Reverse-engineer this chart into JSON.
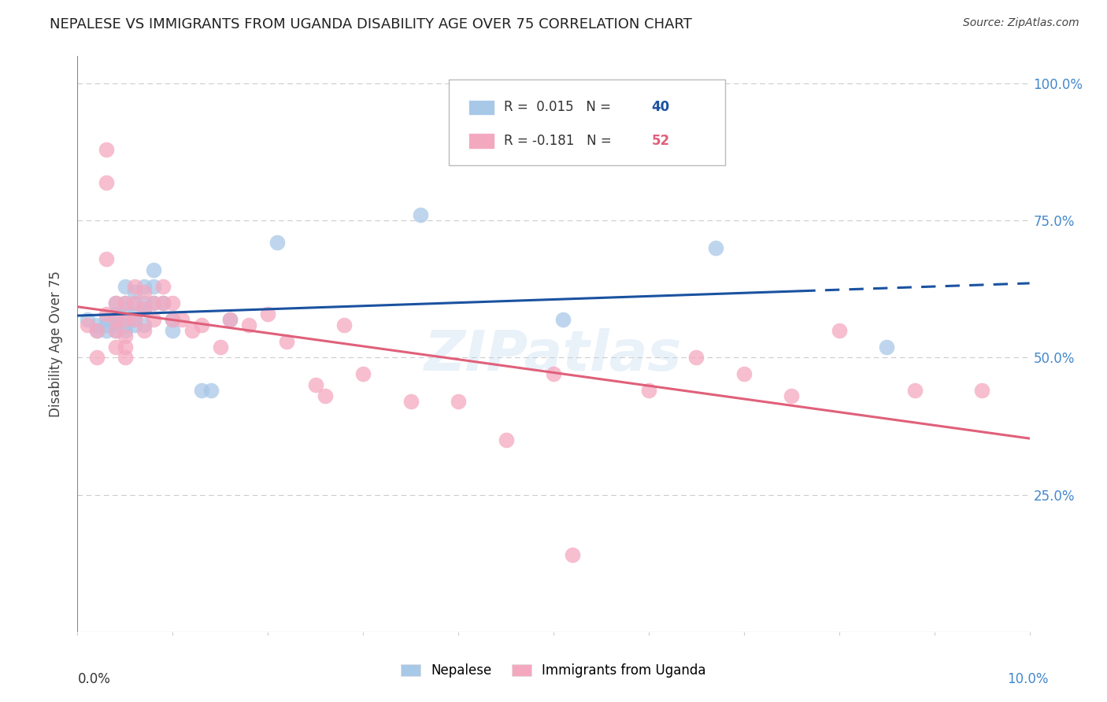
{
  "title": "NEPALESE VS IMMIGRANTS FROM UGANDA DISABILITY AGE OVER 75 CORRELATION CHART",
  "source": "Source: ZipAtlas.com",
  "ylabel": "Disability Age Over 75",
  "xlim": [
    0.0,
    0.1
  ],
  "ylim": [
    0.0,
    1.05
  ],
  "ytick_vals": [
    0.0,
    0.25,
    0.5,
    0.75,
    1.0
  ],
  "xtick_vals": [
    0.0,
    0.01,
    0.02,
    0.03,
    0.04,
    0.05,
    0.06,
    0.07,
    0.08,
    0.09,
    0.1
  ],
  "blue_R": 0.015,
  "blue_N": 40,
  "pink_R": -0.181,
  "pink_N": 52,
  "nepalese_x": [
    0.001,
    0.002,
    0.002,
    0.003,
    0.003,
    0.003,
    0.004,
    0.004,
    0.004,
    0.004,
    0.004,
    0.005,
    0.005,
    0.005,
    0.005,
    0.005,
    0.005,
    0.006,
    0.006,
    0.006,
    0.006,
    0.006,
    0.007,
    0.007,
    0.007,
    0.007,
    0.008,
    0.008,
    0.008,
    0.009,
    0.01,
    0.01,
    0.013,
    0.014,
    0.016,
    0.021,
    0.036,
    0.051,
    0.067,
    0.085
  ],
  "nepalese_y": [
    0.57,
    0.56,
    0.55,
    0.57,
    0.56,
    0.55,
    0.6,
    0.58,
    0.57,
    0.56,
    0.55,
    0.63,
    0.6,
    0.59,
    0.57,
    0.56,
    0.55,
    0.62,
    0.6,
    0.58,
    0.57,
    0.56,
    0.63,
    0.6,
    0.59,
    0.56,
    0.66,
    0.63,
    0.6,
    0.6,
    0.57,
    0.55,
    0.44,
    0.44,
    0.57,
    0.71,
    0.76,
    0.57,
    0.7,
    0.52
  ],
  "uganda_x": [
    0.001,
    0.002,
    0.002,
    0.003,
    0.003,
    0.003,
    0.003,
    0.004,
    0.004,
    0.004,
    0.004,
    0.005,
    0.005,
    0.005,
    0.005,
    0.005,
    0.006,
    0.006,
    0.006,
    0.007,
    0.007,
    0.007,
    0.008,
    0.008,
    0.009,
    0.009,
    0.01,
    0.01,
    0.011,
    0.012,
    0.013,
    0.015,
    0.016,
    0.018,
    0.02,
    0.022,
    0.025,
    0.026,
    0.028,
    0.03,
    0.035,
    0.04,
    0.045,
    0.05,
    0.052,
    0.06,
    0.065,
    0.07,
    0.075,
    0.08,
    0.088,
    0.095
  ],
  "uganda_y": [
    0.56,
    0.55,
    0.5,
    0.88,
    0.82,
    0.68,
    0.58,
    0.6,
    0.57,
    0.55,
    0.52,
    0.6,
    0.57,
    0.54,
    0.52,
    0.5,
    0.63,
    0.6,
    0.57,
    0.62,
    0.59,
    0.55,
    0.6,
    0.57,
    0.63,
    0.6,
    0.6,
    0.57,
    0.57,
    0.55,
    0.56,
    0.52,
    0.57,
    0.56,
    0.58,
    0.53,
    0.45,
    0.43,
    0.56,
    0.47,
    0.42,
    0.42,
    0.35,
    0.47,
    0.14,
    0.44,
    0.5,
    0.47,
    0.43,
    0.55,
    0.44,
    0.44
  ],
  "blue_line_color": "#1a52a0",
  "pink_line_color": "#e0607a",
  "scatter_blue_color": "#a8c8e8",
  "scatter_pink_color": "#f4a8c0",
  "grid_color": "#cccccc",
  "right_axis_color": "#4488cc",
  "watermark": "ZIPatlas",
  "background_color": "#ffffff"
}
